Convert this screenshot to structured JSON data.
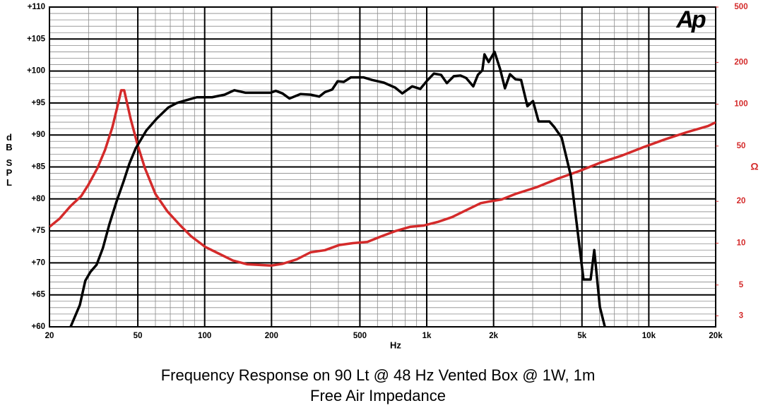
{
  "chart_data": {
    "type": "line",
    "title": "Frequency Response on 90 Lt @ 48 Hz Vented Box @ 1W, 1m",
    "subtitle": "Free Air Impedance",
    "logo": "Ap",
    "xlabel": "Hz",
    "ylabel": "dB SPL",
    "y2label": "Ω",
    "xscale": "log",
    "y2scale": "log",
    "grid": true,
    "xlim": [
      20,
      20000
    ],
    "xticks": [
      20,
      50,
      100,
      200,
      500,
      {
        "value": 1000,
        "label": "1k"
      },
      {
        "value": 2000,
        "label": "2k"
      },
      {
        "value": 5000,
        "label": "5k"
      },
      {
        "value": 10000,
        "label": "10k"
      },
      {
        "value": 20000,
        "label": "20k"
      }
    ],
    "ylim": [
      60,
      110
    ],
    "yticks": [
      {
        "value": 60,
        "label": "+60"
      },
      {
        "value": 65,
        "label": "+65"
      },
      {
        "value": 70,
        "label": "+70"
      },
      {
        "value": 75,
        "label": "+75"
      },
      {
        "value": 80,
        "label": "+80"
      },
      {
        "value": 85,
        "label": "+85"
      },
      {
        "value": 90,
        "label": "+90"
      },
      {
        "value": 95,
        "label": "+95"
      },
      {
        "value": 100,
        "label": "+100"
      },
      {
        "value": 105,
        "label": "+105"
      },
      {
        "value": 110,
        "label": "+110"
      }
    ],
    "y2lim": [
      2.5,
      500
    ],
    "y2ticks": [
      3,
      5,
      10,
      20,
      50,
      100,
      200,
      500
    ],
    "y2color": "#d42a2a",
    "series": [
      {
        "color": "#000000",
        "x": [
          24.9,
          27.4,
          29.0,
          30.6,
          32.6,
          34.8,
          37.2,
          40.1,
          43.2,
          45.8,
          48.9,
          54.6,
          61.0,
          68.6,
          74.9,
          81.9,
          92.2,
          108,
          123,
          136,
          153,
          198,
          209,
          224,
          241,
          270,
          300,
          328,
          348,
          375,
          397,
          423,
          455,
          520,
          568,
          639,
          721,
          776,
          860,
          935,
          1004,
          1077,
          1160,
          1232,
          1325,
          1419,
          1506,
          1620,
          1700,
          1780,
          1820,
          1900,
          2020,
          2140,
          2250,
          2370,
          2510,
          2660,
          2840,
          3010,
          3190,
          3570,
          3760,
          4050,
          4450,
          4790,
          5080,
          5470,
          5680,
          6020,
          6340
        ],
        "values": [
          60,
          63.4,
          67.2,
          68.6,
          69.7,
          72.3,
          76.0,
          79.6,
          82.8,
          85.5,
          87.9,
          90.7,
          92.6,
          94.3,
          95.0,
          95.4,
          95.9,
          95.9,
          96.3,
          97.0,
          96.6,
          96.6,
          96.9,
          96.5,
          95.7,
          96.4,
          96.3,
          96.0,
          96.7,
          97.1,
          98.4,
          98.3,
          99.0,
          99.0,
          98.6,
          98.2,
          97.4,
          96.5,
          97.6,
          97.2,
          98.5,
          99.6,
          99.4,
          98.1,
          99.2,
          99.3,
          98.9,
          97.6,
          99.4,
          100.1,
          102.6,
          101.4,
          103.0,
          100.3,
          97.3,
          99.5,
          98.7,
          98.6,
          94.5,
          95.3,
          92.1,
          92.1,
          91.2,
          89.6,
          83.7,
          74.7,
          67.4,
          67.4,
          72.0,
          63.1,
          60
        ]
      },
      {
        "color": "#d42a2a",
        "axis": "y2",
        "x": [
          20,
          22.2,
          24.9,
          27.8,
          29.9,
          32.9,
          35.6,
          38.4,
          40.5,
          42.1,
          43.4,
          46.4,
          49.9,
          53.8,
          60.0,
          68.0,
          77.7,
          86.9,
          100.6,
          116,
          134,
          155,
          200,
          224,
          260,
          300,
          348,
          404,
          464,
          540,
          625,
          721,
          840,
          970,
          1120,
          1300,
          1510,
          1750,
          1930,
          2170,
          2510,
          3130,
          3910,
          4880,
          6090,
          7600,
          9500,
          11860,
          14800,
          18470,
          20000
        ],
        "values": [
          13.1,
          15.0,
          18.5,
          21.8,
          26.2,
          34.7,
          46.9,
          68.2,
          96.8,
          126,
          126,
          78.5,
          50.9,
          34.7,
          22.6,
          16.9,
          13.4,
          11.2,
          9.4,
          8.4,
          7.5,
          7.05,
          6.9,
          7.1,
          7.65,
          8.6,
          8.9,
          9.7,
          10,
          10.2,
          11.2,
          12.2,
          13.1,
          13.4,
          14.2,
          15.4,
          17.3,
          19.4,
          20,
          20.6,
          22.6,
          25.3,
          29.2,
          33.1,
          38.1,
          42.8,
          49.2,
          55.9,
          62.8,
          69.6,
          74
        ]
      }
    ]
  }
}
